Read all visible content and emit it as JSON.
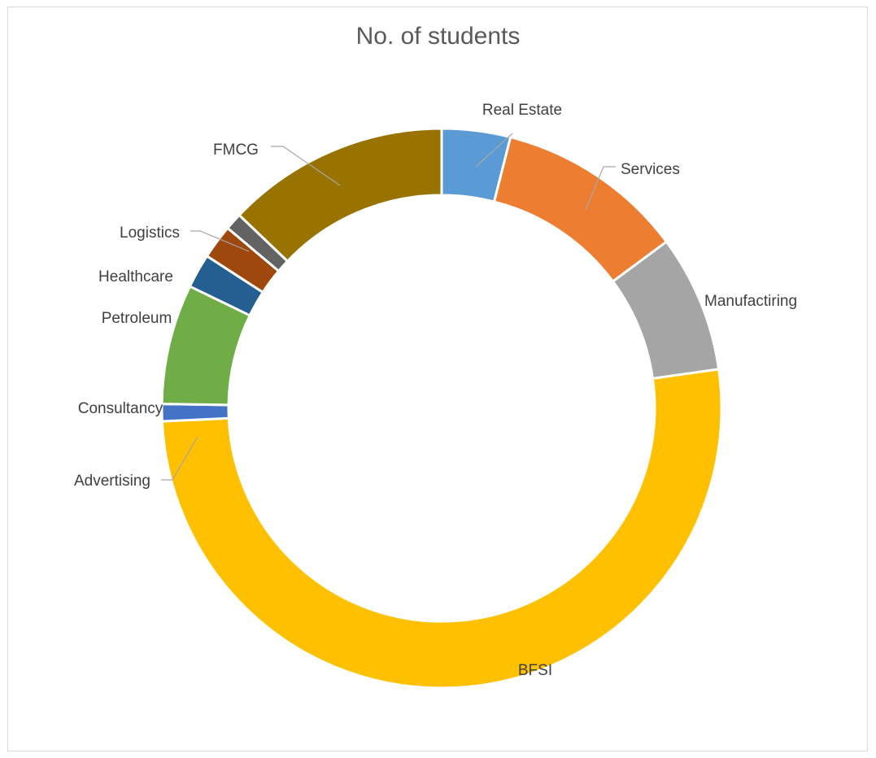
{
  "chart_data": {
    "type": "doughnut",
    "title": "No. of students",
    "categories": [
      "Real Estate",
      "Services",
      "Manufactiring",
      "BFSI",
      "Advertising",
      "Consultancy",
      "Petroleum",
      "Healthcare",
      "Logistics",
      "FMCG"
    ],
    "values": [
      4,
      11,
      8,
      52,
      1,
      7,
      2,
      2,
      1,
      13
    ],
    "colors": [
      "#5B9BD5",
      "#ED7D31",
      "#A5A5A5",
      "#FFC000",
      "#4472C4",
      "#70AD47",
      "#255E91",
      "#9E480E",
      "#636363",
      "#997300"
    ],
    "legend": "none",
    "data_labels": "category names"
  }
}
